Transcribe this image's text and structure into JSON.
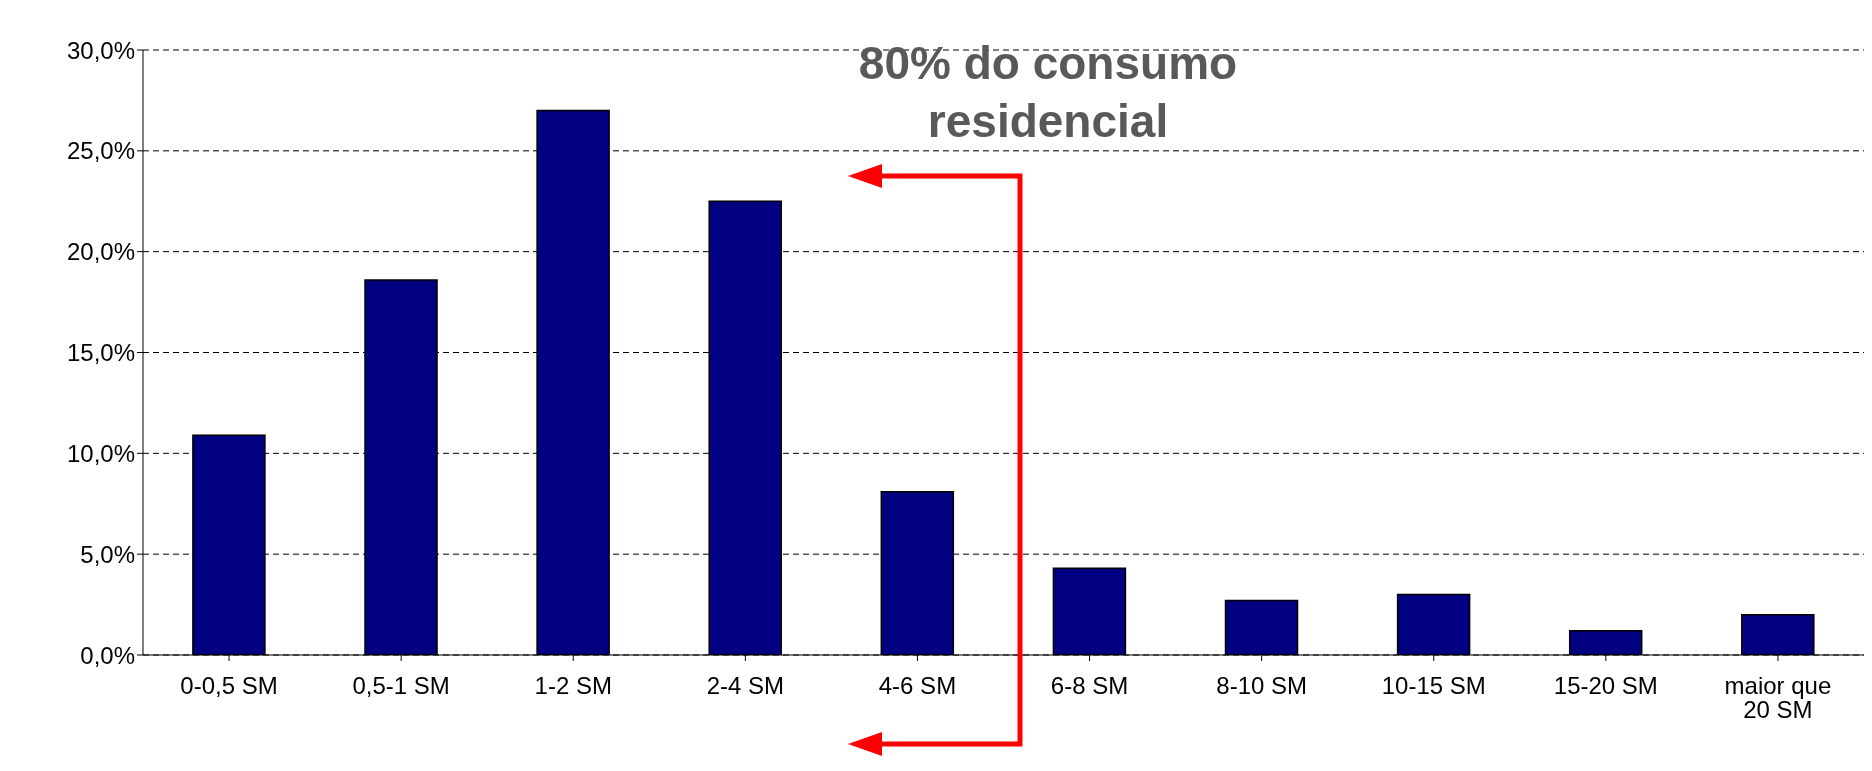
{
  "chart_data": {
    "type": "bar",
    "categories": [
      "0-0,5 SM",
      "0,5-1 SM",
      "1-2 SM",
      "2-4 SM",
      "4-6 SM",
      "6-8 SM",
      "8-10 SM",
      "10-15 SM",
      "15-20 SM",
      "maior que 20 SM"
    ],
    "values": [
      10.9,
      18.6,
      27.0,
      22.5,
      8.1,
      4.3,
      2.7,
      3.0,
      1.2,
      2.0
    ],
    "color": "#000080",
    "ylim": [
      0,
      30
    ],
    "yticks": [
      {
        "value": 0,
        "label": "0,0%"
      },
      {
        "value": 5,
        "label": "5,0%"
      },
      {
        "value": 10,
        "label": "10,0%"
      },
      {
        "value": 15,
        "label": "15,0%"
      },
      {
        "value": 20,
        "label": "20,0%"
      },
      {
        "value": 25,
        "label": "25,0%"
      },
      {
        "value": 30,
        "label": "30,0%"
      }
    ],
    "grid": "y",
    "annotations": [
      "80% do consumo residencial"
    ]
  }
}
